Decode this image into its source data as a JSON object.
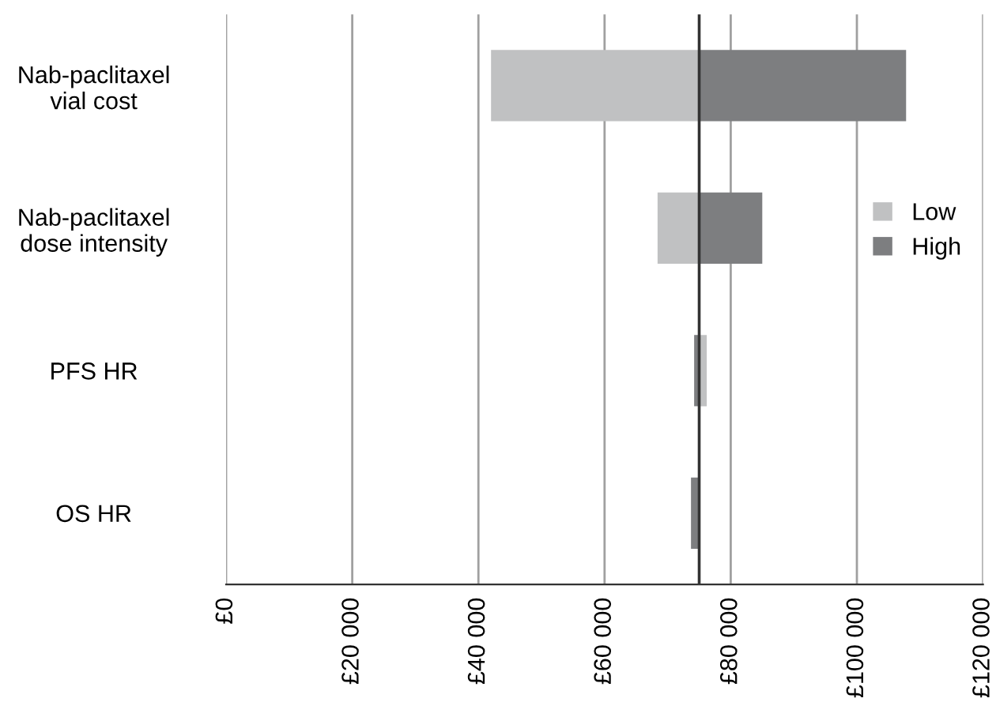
{
  "chart_data": {
    "type": "bar",
    "orientation": "horizontal",
    "categories": [
      "Nab-paclitaxel\nvial cost",
      "Nab-paclitaxel\ndose intensity",
      "PFS HR",
      "OS HR"
    ],
    "series": [
      {
        "name": "Low",
        "color": "#c0c1c2",
        "base": [
          75000,
          75000,
          75000,
          null
        ],
        "values": [
          -33000,
          -6600,
          1200,
          null
        ]
      },
      {
        "name": "High",
        "color": "#7d7e80",
        "base": [
          75000,
          75000,
          75000,
          75000
        ],
        "values": [
          32800,
          10000,
          -800,
          -1300
        ]
      }
    ],
    "xlim": [
      0,
      120000
    ],
    "xticks": [
      {
        "value": 0,
        "label": "£0"
      },
      {
        "value": 20000,
        "label": "£20 000"
      },
      {
        "value": 40000,
        "label": "£40 000"
      },
      {
        "value": 60000,
        "label": "£60 000"
      },
      {
        "value": 80000,
        "label": "£80 000"
      },
      {
        "value": 100000,
        "label": "£100 000"
      },
      {
        "value": 120000,
        "label": "£120 000"
      }
    ],
    "ref_lines": [
      {
        "axis": "x",
        "value": 75000,
        "label": null,
        "color": "#333333"
      }
    ],
    "grid": "x",
    "legend": "right"
  }
}
